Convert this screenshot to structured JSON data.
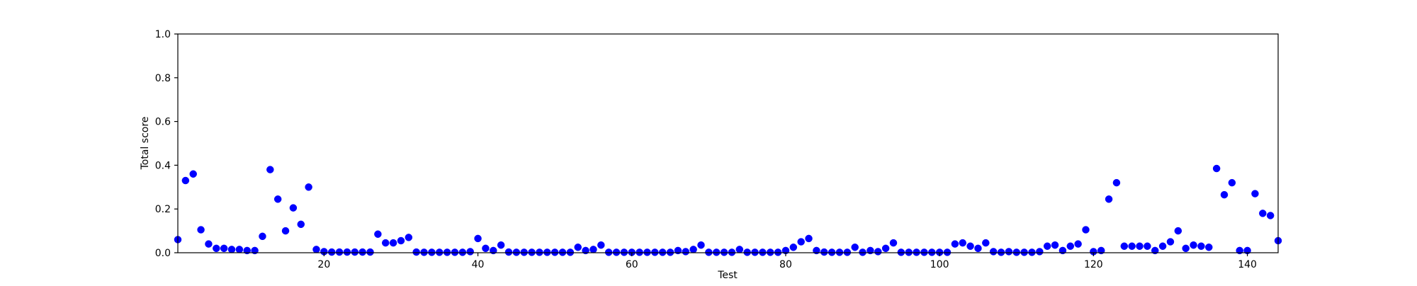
{
  "chart_data": {
    "type": "scatter",
    "title": "",
    "xlabel": "Test",
    "ylabel": "Total score",
    "xlim": [
      1,
      144
    ],
    "ylim": [
      0.0,
      1.0
    ],
    "x_ticks": [
      20,
      40,
      60,
      80,
      100,
      120,
      140
    ],
    "y_ticks": [
      0.0,
      0.2,
      0.4,
      0.6,
      0.8,
      1.0
    ],
    "x_tick_labels": [
      "20",
      "40",
      "60",
      "80",
      "100",
      "120",
      "140"
    ],
    "y_tick_labels": [
      "0.0",
      "0.2",
      "0.4",
      "0.6",
      "0.8",
      "1.0"
    ],
    "grid": false,
    "marker_color": "#0000ff",
    "x": [
      1,
      2,
      3,
      4,
      5,
      6,
      7,
      8,
      9,
      10,
      11,
      12,
      13,
      14,
      15,
      16,
      17,
      18,
      19,
      20,
      21,
      22,
      23,
      24,
      25,
      26,
      27,
      28,
      29,
      30,
      31,
      32,
      33,
      34,
      35,
      36,
      37,
      38,
      39,
      40,
      41,
      42,
      43,
      44,
      45,
      46,
      47,
      48,
      49,
      50,
      51,
      52,
      53,
      54,
      55,
      56,
      57,
      58,
      59,
      60,
      61,
      62,
      63,
      64,
      65,
      66,
      67,
      68,
      69,
      70,
      71,
      72,
      73,
      74,
      75,
      76,
      77,
      78,
      79,
      80,
      81,
      82,
      83,
      84,
      85,
      86,
      87,
      88,
      89,
      90,
      91,
      92,
      93,
      94,
      95,
      96,
      97,
      98,
      99,
      100,
      101,
      102,
      103,
      104,
      105,
      106,
      107,
      108,
      109,
      110,
      111,
      112,
      113,
      114,
      115,
      116,
      117,
      118,
      119,
      120,
      121,
      122,
      123,
      124,
      125,
      126,
      127,
      128,
      129,
      130,
      131,
      132,
      133,
      134,
      135,
      136,
      137,
      138,
      139,
      140,
      141,
      142,
      143,
      144
    ],
    "y": [
      0.06,
      0.33,
      0.36,
      0.105,
      0.04,
      0.02,
      0.02,
      0.015,
      0.015,
      0.01,
      0.01,
      0.075,
      0.38,
      0.245,
      0.1,
      0.205,
      0.13,
      0.3,
      0.015,
      0.005,
      0.003,
      0.003,
      0.003,
      0.003,
      0.003,
      0.003,
      0.085,
      0.045,
      0.045,
      0.055,
      0.07,
      0.003,
      0.002,
      0.002,
      0.002,
      0.002,
      0.002,
      0.002,
      0.005,
      0.065,
      0.02,
      0.01,
      0.035,
      0.003,
      0.002,
      0.002,
      0.002,
      0.002,
      0.002,
      0.002,
      0.002,
      0.002,
      0.025,
      0.01,
      0.015,
      0.035,
      0.002,
      0.002,
      0.002,
      0.002,
      0.002,
      0.002,
      0.002,
      0.002,
      0.002,
      0.01,
      0.005,
      0.015,
      0.035,
      0.002,
      0.002,
      0.002,
      0.002,
      0.015,
      0.002,
      0.002,
      0.002,
      0.002,
      0.002,
      0.01,
      0.025,
      0.05,
      0.065,
      0.01,
      0.003,
      0.002,
      0.002,
      0.002,
      0.025,
      0.002,
      0.01,
      0.005,
      0.02,
      0.045,
      0.002,
      0.002,
      0.002,
      0.002,
      0.002,
      0.002,
      0.002,
      0.04,
      0.045,
      0.03,
      0.02,
      0.045,
      0.005,
      0.002,
      0.005,
      0.002,
      0.002,
      0.002,
      0.005,
      0.03,
      0.035,
      0.01,
      0.03,
      0.04,
      0.105,
      0.005,
      0.01,
      0.245,
      0.32,
      0.03,
      0.03,
      0.03,
      0.03,
      0.01,
      0.03,
      0.05,
      0.1,
      0.02,
      0.035,
      0.03,
      0.025,
      0.385,
      0.265,
      0.32,
      0.01,
      0.01,
      0.27,
      0.18,
      0.17,
      0.055
    ]
  }
}
